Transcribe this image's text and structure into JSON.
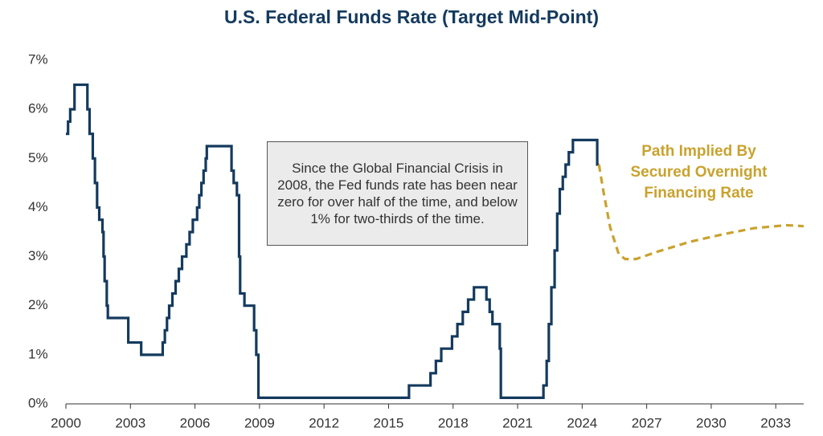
{
  "chart_data": {
    "type": "line",
    "title": "U.S. Federal Funds Rate (Target Mid-Point)",
    "annotation": "Since the Global Financial Crisis in 2008, the Fed funds rate has been near zero for over half of the time, and below 1% for two-thirds of the time.",
    "xlim": [
      2000,
      2034.3
    ],
    "xticks": [
      2000,
      2003,
      2006,
      2009,
      2012,
      2015,
      2018,
      2021,
      2024,
      2027,
      2030,
      2033
    ],
    "ylim": [
      0,
      7
    ],
    "yticks": [
      {
        "value": 0,
        "label": "0%"
      },
      {
        "value": 1,
        "label": "1%"
      },
      {
        "value": 2,
        "label": "2%"
      },
      {
        "value": 3,
        "label": "3%"
      },
      {
        "value": 4,
        "label": "4%"
      },
      {
        "value": 5,
        "label": "5%"
      },
      {
        "value": 6,
        "label": "6%"
      },
      {
        "value": 7,
        "label": "7%"
      }
    ],
    "series": [
      {
        "color": "#143a5e",
        "dash": false,
        "x": [
          2000.0,
          2000.1,
          2000.1,
          2000.2,
          2000.2,
          2000.4,
          2000.4,
          2001.0,
          2001.0,
          2001.1,
          2001.1,
          2001.25,
          2001.25,
          2001.35,
          2001.35,
          2001.45,
          2001.45,
          2001.55,
          2001.55,
          2001.7,
          2001.7,
          2001.75,
          2001.75,
          2001.8,
          2001.8,
          2001.9,
          2001.9,
          2001.95,
          2001.95,
          2002.9,
          2002.9,
          2003.5,
          2003.5,
          2004.5,
          2004.5,
          2004.6,
          2004.6,
          2004.7,
          2004.7,
          2004.8,
          2004.8,
          2004.95,
          2004.95,
          2005.1,
          2005.1,
          2005.25,
          2005.25,
          2005.4,
          2005.4,
          2005.6,
          2005.6,
          2005.75,
          2005.75,
          2005.9,
          2005.9,
          2006.1,
          2006.1,
          2006.2,
          2006.2,
          2006.3,
          2006.3,
          2006.4,
          2006.4,
          2006.5,
          2006.5,
          2006.55,
          2006.55,
          2007.7,
          2007.7,
          2007.8,
          2007.8,
          2007.95,
          2007.95,
          2008.05,
          2008.05,
          2008.1,
          2008.1,
          2008.3,
          2008.3,
          2008.75,
          2008.75,
          2008.85,
          2008.85,
          2008.95,
          2008.95,
          2015.95,
          2015.95,
          2016.95,
          2016.95,
          2017.2,
          2017.2,
          2017.45,
          2017.45,
          2017.95,
          2017.95,
          2018.2,
          2018.2,
          2018.45,
          2018.45,
          2018.7,
          2018.7,
          2018.97,
          2018.97,
          2019.55,
          2019.55,
          2019.7,
          2019.7,
          2019.83,
          2019.83,
          2020.17,
          2020.17,
          2020.22,
          2020.22,
          2022.2,
          2022.2,
          2022.35,
          2022.35,
          2022.45,
          2022.45,
          2022.57,
          2022.57,
          2022.72,
          2022.72,
          2022.84,
          2022.84,
          2022.96,
          2022.96,
          2023.1,
          2023.1,
          2023.23,
          2023.23,
          2023.38,
          2023.38,
          2023.57,
          2023.57,
          2024.7,
          2024.7,
          2024.78
        ],
        "values": [
          5.5,
          5.5,
          5.75,
          5.75,
          6.0,
          6.0,
          6.5,
          6.5,
          6.0,
          6.0,
          5.5,
          5.5,
          5.0,
          5.0,
          4.5,
          4.5,
          4.0,
          4.0,
          3.75,
          3.75,
          3.5,
          3.5,
          3.0,
          3.0,
          2.5,
          2.5,
          2.0,
          2.0,
          1.75,
          1.75,
          1.25,
          1.25,
          1.0,
          1.0,
          1.25,
          1.25,
          1.5,
          1.5,
          1.75,
          1.75,
          2.0,
          2.0,
          2.25,
          2.25,
          2.5,
          2.5,
          2.75,
          2.75,
          3.0,
          3.0,
          3.25,
          3.25,
          3.5,
          3.5,
          3.75,
          3.75,
          4.0,
          4.0,
          4.25,
          4.25,
          4.5,
          4.5,
          4.75,
          4.75,
          5.0,
          5.0,
          5.25,
          5.25,
          4.75,
          4.75,
          4.5,
          4.5,
          4.25,
          4.25,
          3.0,
          3.0,
          2.25,
          2.25,
          2.0,
          2.0,
          1.5,
          1.5,
          1.0,
          1.0,
          0.125,
          0.125,
          0.375,
          0.375,
          0.625,
          0.625,
          0.875,
          0.875,
          1.125,
          1.125,
          1.375,
          1.375,
          1.625,
          1.625,
          1.875,
          1.875,
          2.125,
          2.125,
          2.375,
          2.375,
          2.125,
          2.125,
          1.875,
          1.875,
          1.625,
          1.625,
          1.125,
          1.125,
          0.125,
          0.125,
          0.375,
          0.375,
          0.875,
          0.875,
          1.625,
          1.625,
          2.375,
          2.375,
          3.125,
          3.125,
          3.875,
          3.875,
          4.375,
          4.375,
          4.625,
          4.625,
          4.875,
          4.875,
          5.125,
          5.125,
          5.375,
          5.375,
          4.875,
          4.875
        ]
      },
      {
        "name": "Path Implied By Secured Overnight Financing Rate",
        "color": "#c9a22e",
        "dash": true,
        "x": [
          2024.78,
          2025.0,
          2025.3,
          2025.7,
          2026.0,
          2026.5,
          2027.5,
          2029.0,
          2030.5,
          2032.0,
          2033.5,
          2034.3
        ],
        "values": [
          4.875,
          4.3,
          3.6,
          3.05,
          2.95,
          2.95,
          3.1,
          3.3,
          3.45,
          3.58,
          3.64,
          3.62
        ]
      }
    ]
  }
}
